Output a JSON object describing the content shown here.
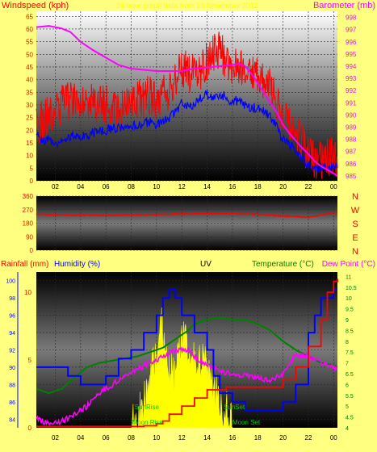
{
  "colors": {
    "background": "#ffff80",
    "grid": "#2a2a2a",
    "wind": "#ff0000",
    "gust": "#ff0000",
    "wind_avg": "#0000ff",
    "barometer": "#ff00ff",
    "wind_dir": "#ff0000",
    "rainfall": "#ff0000",
    "humidity": "#0000ff",
    "temperature": "#008000",
    "dew_point": "#ff00ff",
    "uv": "#ffff00",
    "sun_moon": "#00cc00",
    "title_yellow": "#ffff00"
  },
  "chart_data": [
    {
      "type": "line",
      "id": "wind-barometer",
      "title": "24 hour graph data from 13 November 2012",
      "ylabel_left": "Windspeed (kph)",
      "ylabel_right": "Barometer (mb)",
      "y_left_range": [
        0,
        67
      ],
      "y_left_ticks": [
        0,
        5,
        10,
        15,
        20,
        25,
        30,
        35,
        40,
        45,
        50,
        55,
        60,
        65
      ],
      "y_right_range": [
        984.6,
        998.5
      ],
      "y_right_ticks": [
        985,
        986,
        987,
        988,
        989,
        990,
        991,
        992,
        993,
        994,
        995,
        996,
        997,
        998
      ],
      "x_range": [
        0.5,
        24.3
      ],
      "x_ticks": [
        "02",
        "04",
        "06",
        "08",
        "10",
        "12",
        "14",
        "16",
        "18",
        "20",
        "22",
        "00"
      ],
      "x_tick_hours": [
        2,
        4,
        6,
        8,
        10,
        12,
        14,
        16,
        18,
        20,
        22,
        24
      ],
      "series": [
        {
          "key": "gust",
          "x": [
            0.5,
            1,
            1.5,
            2,
            2.5,
            3,
            3.5,
            4,
            4.5,
            5,
            5.5,
            6,
            6.5,
            7,
            7.5,
            8,
            8.5,
            9,
            9.5,
            10,
            10.5,
            11,
            11.5,
            12,
            12.5,
            13,
            13.5,
            14,
            14.5,
            15,
            15.5,
            16,
            16.5,
            17,
            17.5,
            18,
            18.5,
            19,
            19.5,
            20,
            20.5,
            21,
            21.5,
            22,
            22.5,
            23,
            23.5,
            24,
            24.3
          ],
          "y": [
            22,
            24,
            26,
            28,
            30,
            31,
            32,
            33,
            32,
            31,
            30,
            30,
            29,
            28,
            28,
            30,
            32,
            33,
            34,
            33,
            34,
            36,
            40,
            45,
            43,
            42,
            44,
            48,
            50,
            52,
            47,
            44,
            45,
            46,
            43,
            42,
            40,
            37,
            30,
            25,
            22,
            20,
            15,
            10,
            8,
            8,
            9,
            10,
            9
          ]
        },
        {
          "key": "wind_avg",
          "x": [
            0.5,
            1,
            1.5,
            2,
            2.5,
            3,
            3.5,
            4,
            4.5,
            5,
            5.5,
            6,
            6.5,
            7,
            7.5,
            8,
            8.5,
            9,
            9.5,
            10,
            10.5,
            11,
            11.5,
            12,
            12.5,
            13,
            13.5,
            14,
            14.5,
            15,
            15.5,
            16,
            16.5,
            17,
            17.5,
            18,
            18.5,
            19,
            19.5,
            20,
            20.5,
            21,
            21.5,
            22,
            22.5,
            23,
            23.5,
            24,
            24.3
          ],
          "y": [
            18,
            16,
            16,
            15,
            16,
            17,
            18,
            18,
            18,
            19,
            20,
            20,
            21,
            21,
            20,
            21,
            22,
            23,
            23,
            22,
            23,
            25,
            27,
            31,
            30,
            30,
            33,
            34,
            33,
            34,
            33,
            31,
            32,
            30,
            29,
            29,
            27,
            25,
            21,
            16,
            14,
            12,
            9,
            6,
            5,
            5,
            5,
            6,
            6
          ]
        },
        {
          "key": "barometer",
          "x": [
            0.5,
            1.5,
            2.5,
            3.2,
            4,
            5,
            6,
            7,
            8,
            9,
            10,
            11,
            12,
            13,
            14,
            15,
            16,
            16.5,
            17,
            17.5,
            18,
            18.5,
            19,
            19.5,
            20,
            20.5,
            21,
            21.5,
            22,
            22.5,
            23,
            23.5,
            24,
            24.3
          ],
          "y": [
            997.2,
            997.3,
            997.1,
            996.8,
            996.0,
            995.3,
            994.7,
            994.1,
            993.8,
            993.7,
            993.6,
            993.6,
            993.6,
            993.8,
            993.9,
            994.0,
            994.1,
            994.2,
            994.0,
            993.4,
            992.6,
            991.8,
            991.0,
            990.2,
            989.2,
            988.5,
            987.9,
            987.3,
            986.8,
            986.2,
            985.8,
            985.5,
            985.2,
            985.0
          ]
        }
      ]
    },
    {
      "type": "line",
      "id": "wind-direction",
      "y_range": [
        0,
        360
      ],
      "y_ticks": [
        0,
        90,
        180,
        270,
        360
      ],
      "compass_labels": [
        "N",
        "W",
        "S",
        "E",
        "N"
      ],
      "x_range": [
        0.5,
        24.3
      ],
      "series": [
        {
          "key": "direction",
          "x": [
            0.5,
            2,
            4,
            6,
            8,
            10,
            12,
            14,
            16,
            18,
            20,
            21,
            22,
            23,
            24,
            24.3
          ],
          "y": [
            240,
            235,
            233,
            232,
            234,
            237,
            242,
            245,
            244,
            238,
            228,
            225,
            218,
            235,
            245,
            255
          ]
        }
      ]
    },
    {
      "type": "line",
      "id": "rain-humidity-uv-temp",
      "labels": {
        "rainfall": "Rainfall (mm)",
        "humidity": "Humidity (%)",
        "uv": "UV",
        "temperature": "Temperature (°C)",
        "dew_point": "Dew Point (°C)"
      },
      "rain_range": [
        0,
        11.5
      ],
      "rain_ticks": [
        0,
        5,
        10
      ],
      "humidity_range": [
        83,
        101
      ],
      "humidity_ticks": [
        84,
        86,
        88,
        90,
        92,
        94,
        96,
        98,
        100
      ],
      "temp_range": [
        4,
        11.2
      ],
      "temp_ticks": [
        4,
        4.5,
        5,
        5.5,
        6,
        6.5,
        7,
        7.5,
        8,
        8.5,
        9,
        9.5,
        10,
        10.5,
        11
      ],
      "uv_range": [
        0,
        10
      ],
      "x_range": [
        0.5,
        24.3
      ],
      "annotations": [
        "SunRise",
        "SunSet",
        "Moon Rise",
        "Moon Set"
      ],
      "series": [
        {
          "key": "rainfall",
          "x": [
            0.5,
            8,
            9,
            10,
            10.5,
            11,
            12,
            13,
            14,
            15.5,
            17,
            19,
            20,
            21,
            22,
            23,
            23.5,
            24,
            24.3
          ],
          "y": [
            0.1,
            0.1,
            0.15,
            0.3,
            0.5,
            1.0,
            1.6,
            2.2,
            2.8,
            3.0,
            3.0,
            3.0,
            3.6,
            4.5,
            6.0,
            8.0,
            10.0,
            10.8,
            11.0
          ]
        },
        {
          "key": "humidity",
          "x": [
            0.5,
            2,
            3,
            4,
            5,
            6,
            7,
            8,
            9,
            10,
            10.5,
            11,
            11.5,
            12,
            13,
            14,
            14.5,
            15,
            16,
            17,
            18,
            19,
            20,
            21,
            22,
            22.5,
            23,
            24,
            24.3
          ],
          "y": [
            90,
            90,
            89,
            88,
            88,
            89,
            91,
            92,
            94,
            96,
            98,
            99,
            98,
            96,
            94,
            92,
            89,
            87,
            86,
            85,
            85,
            85,
            86,
            88,
            94,
            96,
            98,
            99,
            99
          ]
        },
        {
          "key": "temperature",
          "x": [
            0.5,
            1.5,
            2.5,
            3.5,
            4.5,
            5.5,
            6.5,
            7.5,
            8.5,
            9.5,
            10.5,
            11.5,
            12.5,
            13,
            14,
            15,
            16,
            17,
            18,
            19,
            20,
            21,
            22,
            23,
            24,
            24.3
          ],
          "y": [
            5.8,
            5.6,
            5.8,
            6.3,
            6.8,
            7.0,
            7.1,
            7.2,
            7.3,
            7.5,
            7.7,
            8.1,
            8.5,
            8.8,
            9.0,
            9.1,
            9.0,
            9.0,
            8.8,
            8.5,
            8.0,
            7.6,
            7.3,
            7.0,
            6.9,
            6.8
          ]
        },
        {
          "key": "dew_point",
          "x": [
            0.5,
            1.5,
            2.5,
            3.5,
            4.5,
            5.5,
            6.5,
            7.5,
            8.5,
            9.5,
            10.5,
            11.5,
            12.5,
            13,
            14,
            15,
            16,
            17,
            18,
            19,
            20,
            20.5,
            21,
            22,
            23,
            24,
            24.3
          ],
          "y": [
            4.4,
            4.2,
            4.3,
            4.6,
            5.0,
            5.6,
            6.0,
            6.4,
            6.7,
            7.0,
            7.3,
            7.6,
            7.6,
            7.3,
            6.9,
            6.6,
            6.5,
            6.4,
            6.3,
            6.2,
            6.5,
            7.0,
            7.4,
            7.3,
            7.0,
            6.8,
            6.7
          ]
        },
        {
          "key": "uv",
          "x": [
            8,
            8.5,
            9,
            9.5,
            10,
            10.5,
            11,
            11.5,
            12,
            12.5,
            13,
            13.5,
            14,
            14.5,
            15,
            15.5,
            16
          ],
          "y": [
            0,
            0.5,
            1.5,
            3,
            5,
            6.5,
            4,
            3,
            6,
            5,
            4,
            4.5,
            3.5,
            2.5,
            2,
            1,
            0
          ]
        }
      ]
    }
  ]
}
